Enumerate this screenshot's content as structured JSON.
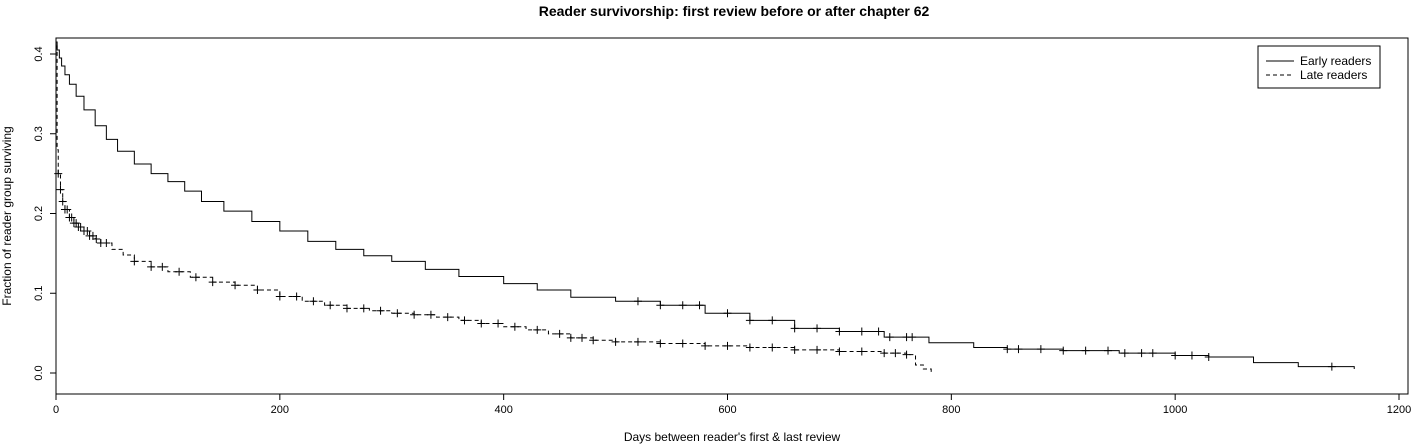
{
  "chart_data": {
    "type": "line",
    "title": "Reader survivorship: first review before or after chapter 62",
    "xlabel": "Days between reader's first & last review",
    "ylabel": "Fraction of reader group surviving",
    "xlim": [
      0,
      1200
    ],
    "ylim": [
      0,
      0.42
    ],
    "x_ticks": [
      "0",
      "200",
      "400",
      "600",
      "800",
      "1000",
      "1200"
    ],
    "y_ticks": [
      "0.0",
      "0.1",
      "0.2",
      "0.3",
      "0.4"
    ],
    "grid": false,
    "legend_position": "top-right",
    "series": [
      {
        "name": "Early readers",
        "line_style": "solid",
        "color": "#000000",
        "points": [
          [
            0,
            0.415
          ],
          [
            1,
            0.405
          ],
          [
            3,
            0.395
          ],
          [
            5,
            0.385
          ],
          [
            8,
            0.374
          ],
          [
            12,
            0.362
          ],
          [
            18,
            0.347
          ],
          [
            25,
            0.33
          ],
          [
            35,
            0.31
          ],
          [
            45,
            0.293
          ],
          [
            55,
            0.278
          ],
          [
            70,
            0.262
          ],
          [
            85,
            0.25
          ],
          [
            100,
            0.24
          ],
          [
            115,
            0.228
          ],
          [
            130,
            0.215
          ],
          [
            150,
            0.203
          ],
          [
            175,
            0.19
          ],
          [
            200,
            0.178
          ],
          [
            225,
            0.165
          ],
          [
            250,
            0.155
          ],
          [
            275,
            0.147
          ],
          [
            300,
            0.14
          ],
          [
            330,
            0.13
          ],
          [
            360,
            0.121
          ],
          [
            400,
            0.112
          ],
          [
            430,
            0.104
          ],
          [
            460,
            0.095
          ],
          [
            500,
            0.09
          ],
          [
            540,
            0.085
          ],
          [
            580,
            0.075
          ],
          [
            620,
            0.066
          ],
          [
            660,
            0.056
          ],
          [
            700,
            0.052
          ],
          [
            740,
            0.045
          ],
          [
            780,
            0.038
          ],
          [
            820,
            0.032
          ],
          [
            850,
            0.03
          ],
          [
            900,
            0.028
          ],
          [
            950,
            0.025
          ],
          [
            1000,
            0.022
          ],
          [
            1030,
            0.02
          ],
          [
            1070,
            0.013
          ],
          [
            1110,
            0.008
          ],
          [
            1160,
            0.005
          ]
        ],
        "censor_marks_x": [
          520,
          540,
          560,
          575,
          600,
          620,
          640,
          660,
          680,
          700,
          720,
          735,
          745,
          760,
          765,
          850,
          860,
          880,
          900,
          920,
          940,
          955,
          970,
          980,
          1000,
          1015,
          1030,
          1140
        ]
      },
      {
        "name": "Late readers",
        "line_style": "dashed",
        "color": "#000000",
        "points": [
          [
            0,
            0.41
          ],
          [
            1,
            0.28
          ],
          [
            2,
            0.25
          ],
          [
            4,
            0.23
          ],
          [
            6,
            0.215
          ],
          [
            8,
            0.205
          ],
          [
            12,
            0.195
          ],
          [
            16,
            0.188
          ],
          [
            20,
            0.183
          ],
          [
            25,
            0.178
          ],
          [
            30,
            0.172
          ],
          [
            35,
            0.168
          ],
          [
            40,
            0.163
          ],
          [
            50,
            0.155
          ],
          [
            60,
            0.148
          ],
          [
            70,
            0.14
          ],
          [
            85,
            0.133
          ],
          [
            100,
            0.127
          ],
          [
            120,
            0.12
          ],
          [
            140,
            0.114
          ],
          [
            160,
            0.11
          ],
          [
            180,
            0.104
          ],
          [
            200,
            0.096
          ],
          [
            220,
            0.09
          ],
          [
            240,
            0.085
          ],
          [
            260,
            0.081
          ],
          [
            280,
            0.078
          ],
          [
            300,
            0.075
          ],
          [
            320,
            0.073
          ],
          [
            340,
            0.07
          ],
          [
            360,
            0.066
          ],
          [
            380,
            0.062
          ],
          [
            400,
            0.058
          ],
          [
            420,
            0.054
          ],
          [
            440,
            0.049
          ],
          [
            460,
            0.044
          ],
          [
            480,
            0.041
          ],
          [
            500,
            0.039
          ],
          [
            540,
            0.037
          ],
          [
            580,
            0.034
          ],
          [
            620,
            0.032
          ],
          [
            660,
            0.029
          ],
          [
            700,
            0.027
          ],
          [
            740,
            0.025
          ],
          [
            760,
            0.023
          ],
          [
            768,
            0.01
          ],
          [
            775,
            0.005
          ],
          [
            782,
            0.0
          ]
        ],
        "censor_marks_x": [
          2,
          4,
          6,
          8,
          10,
          12,
          14,
          16,
          18,
          20,
          22,
          25,
          28,
          30,
          33,
          36,
          40,
          45,
          70,
          85,
          95,
          110,
          125,
          140,
          160,
          180,
          200,
          215,
          230,
          245,
          260,
          275,
          290,
          305,
          320,
          335,
          350,
          365,
          380,
          395,
          410,
          430,
          450,
          460,
          470,
          480,
          500,
          520,
          540,
          560,
          580,
          600,
          620,
          640,
          660,
          680,
          700,
          720,
          740,
          750,
          760
        ]
      }
    ]
  }
}
